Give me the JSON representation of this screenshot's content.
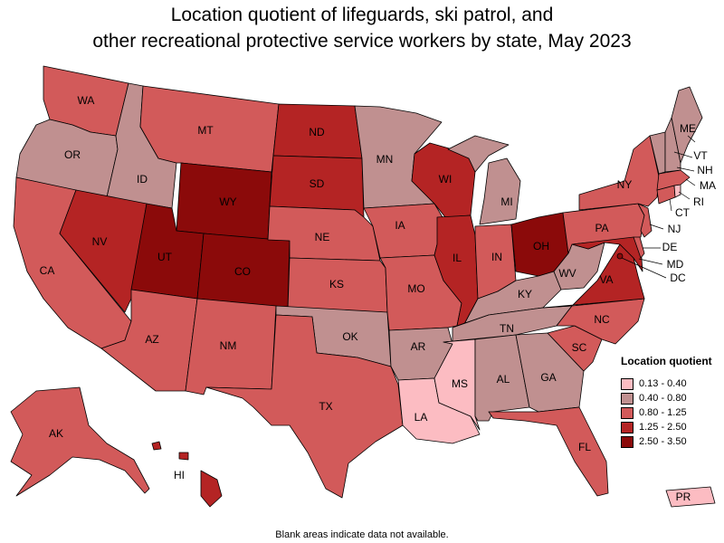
{
  "title_lines": [
    "Location quotient of lifeguards, ski patrol, and",
    "other recreational protective service workers by state, May 2023"
  ],
  "legend": {
    "title": "Location quotient",
    "bins": [
      {
        "label": "0.13 - 0.40",
        "color": "#fcbcc2"
      },
      {
        "label": "0.40 - 0.80",
        "color": "#c09090"
      },
      {
        "label": "0.80 - 1.25",
        "color": "#d25a5a"
      },
      {
        "label": "1.25 - 2.50",
        "color": "#b42424"
      },
      {
        "label": "2.50 - 3.50",
        "color": "#8b0a0a"
      }
    ]
  },
  "footnote": "Blank areas indicate data not available.",
  "states": [
    {
      "abbr": "WA",
      "bin": 2
    },
    {
      "abbr": "OR",
      "bin": 1
    },
    {
      "abbr": "CA",
      "bin": 2
    },
    {
      "abbr": "ID",
      "bin": 1
    },
    {
      "abbr": "NV",
      "bin": 3
    },
    {
      "abbr": "MT",
      "bin": 2
    },
    {
      "abbr": "WY",
      "bin": 4
    },
    {
      "abbr": "UT",
      "bin": 4
    },
    {
      "abbr": "AZ",
      "bin": 2
    },
    {
      "abbr": "CO",
      "bin": 4
    },
    {
      "abbr": "NM",
      "bin": 2
    },
    {
      "abbr": "ND",
      "bin": 3
    },
    {
      "abbr": "SD",
      "bin": 3
    },
    {
      "abbr": "NE",
      "bin": 2
    },
    {
      "abbr": "KS",
      "bin": 2
    },
    {
      "abbr": "OK",
      "bin": 1
    },
    {
      "abbr": "TX",
      "bin": 2
    },
    {
      "abbr": "MN",
      "bin": 1
    },
    {
      "abbr": "IA",
      "bin": 2
    },
    {
      "abbr": "MO",
      "bin": 2
    },
    {
      "abbr": "AR",
      "bin": 1
    },
    {
      "abbr": "LA",
      "bin": 0
    },
    {
      "abbr": "WI",
      "bin": 3
    },
    {
      "abbr": "IL",
      "bin": 3
    },
    {
      "abbr": "MI",
      "bin": 1
    },
    {
      "abbr": "IN",
      "bin": 2
    },
    {
      "abbr": "OH",
      "bin": 4
    },
    {
      "abbr": "KY",
      "bin": 1
    },
    {
      "abbr": "TN",
      "bin": 1
    },
    {
      "abbr": "MS",
      "bin": 0
    },
    {
      "abbr": "AL",
      "bin": 1
    },
    {
      "abbr": "GA",
      "bin": 1
    },
    {
      "abbr": "FL",
      "bin": 2
    },
    {
      "abbr": "SC",
      "bin": 2
    },
    {
      "abbr": "NC",
      "bin": 2
    },
    {
      "abbr": "VA",
      "bin": 3
    },
    {
      "abbr": "WV",
      "bin": 1
    },
    {
      "abbr": "PA",
      "bin": 2
    },
    {
      "abbr": "NY",
      "bin": 2
    },
    {
      "abbr": "NJ",
      "bin": 2
    },
    {
      "abbr": "DE",
      "bin": 2
    },
    {
      "abbr": "MD",
      "bin": 3
    },
    {
      "abbr": "DC",
      "bin": 4
    },
    {
      "abbr": "CT",
      "bin": 2
    },
    {
      "abbr": "RI",
      "bin": 0
    },
    {
      "abbr": "MA",
      "bin": 2
    },
    {
      "abbr": "VT",
      "bin": 1
    },
    {
      "abbr": "NH",
      "bin": 1
    },
    {
      "abbr": "ME",
      "bin": 1
    },
    {
      "abbr": "AK",
      "bin": 2
    },
    {
      "abbr": "HI",
      "bin": 3
    },
    {
      "abbr": "PR",
      "bin": 0
    }
  ]
}
